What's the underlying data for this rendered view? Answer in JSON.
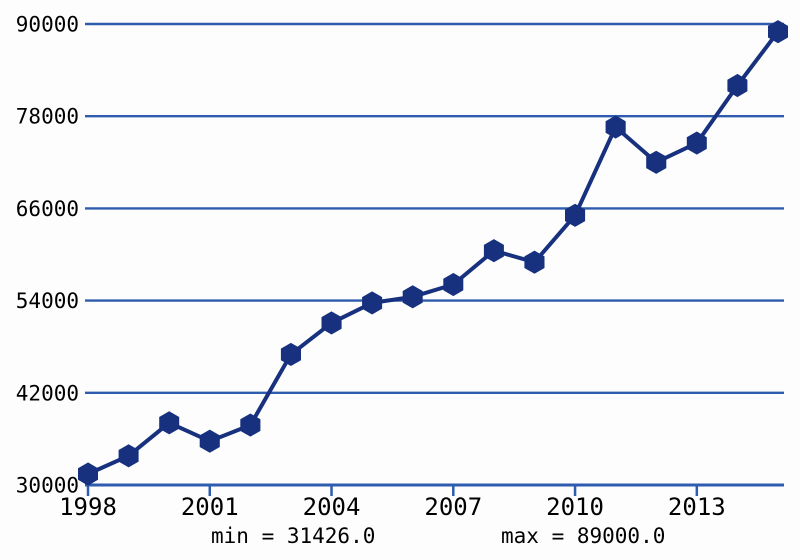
{
  "chart_data": {
    "type": "line",
    "title": "",
    "xlabel": "",
    "ylabel": "",
    "x": [
      1998,
      1999,
      2000,
      2001,
      2002,
      2003,
      2004,
      2005,
      2006,
      2007,
      2008,
      2009,
      2010,
      2011,
      2012,
      2013,
      2014,
      2015
    ],
    "values": [
      31426,
      33800,
      38100,
      35700,
      37800,
      47000,
      51100,
      53700,
      54500,
      56100,
      60500,
      59000,
      65100,
      76600,
      72000,
      74500,
      82000,
      89000
    ],
    "xticks": [
      1998,
      2001,
      2004,
      2007,
      2010,
      2013
    ],
    "yticks": [
      30000,
      42000,
      54000,
      66000,
      78000,
      90000
    ],
    "xlim": [
      1998,
      2015
    ],
    "ylim": [
      30000,
      90000
    ],
    "grid": "horizontal",
    "legend": "none",
    "marker": "hexagon",
    "min_label": "min = 31426.0",
    "max_label": "max = 89000.0",
    "min_value": 31426.0,
    "max_value": 89000.0,
    "colors": {
      "line": "#17317f",
      "marker": "#17317f",
      "grid": "#2e5cae",
      "axis": "#2e5cae",
      "text": "#000000",
      "background": "#fdfdfd"
    }
  }
}
